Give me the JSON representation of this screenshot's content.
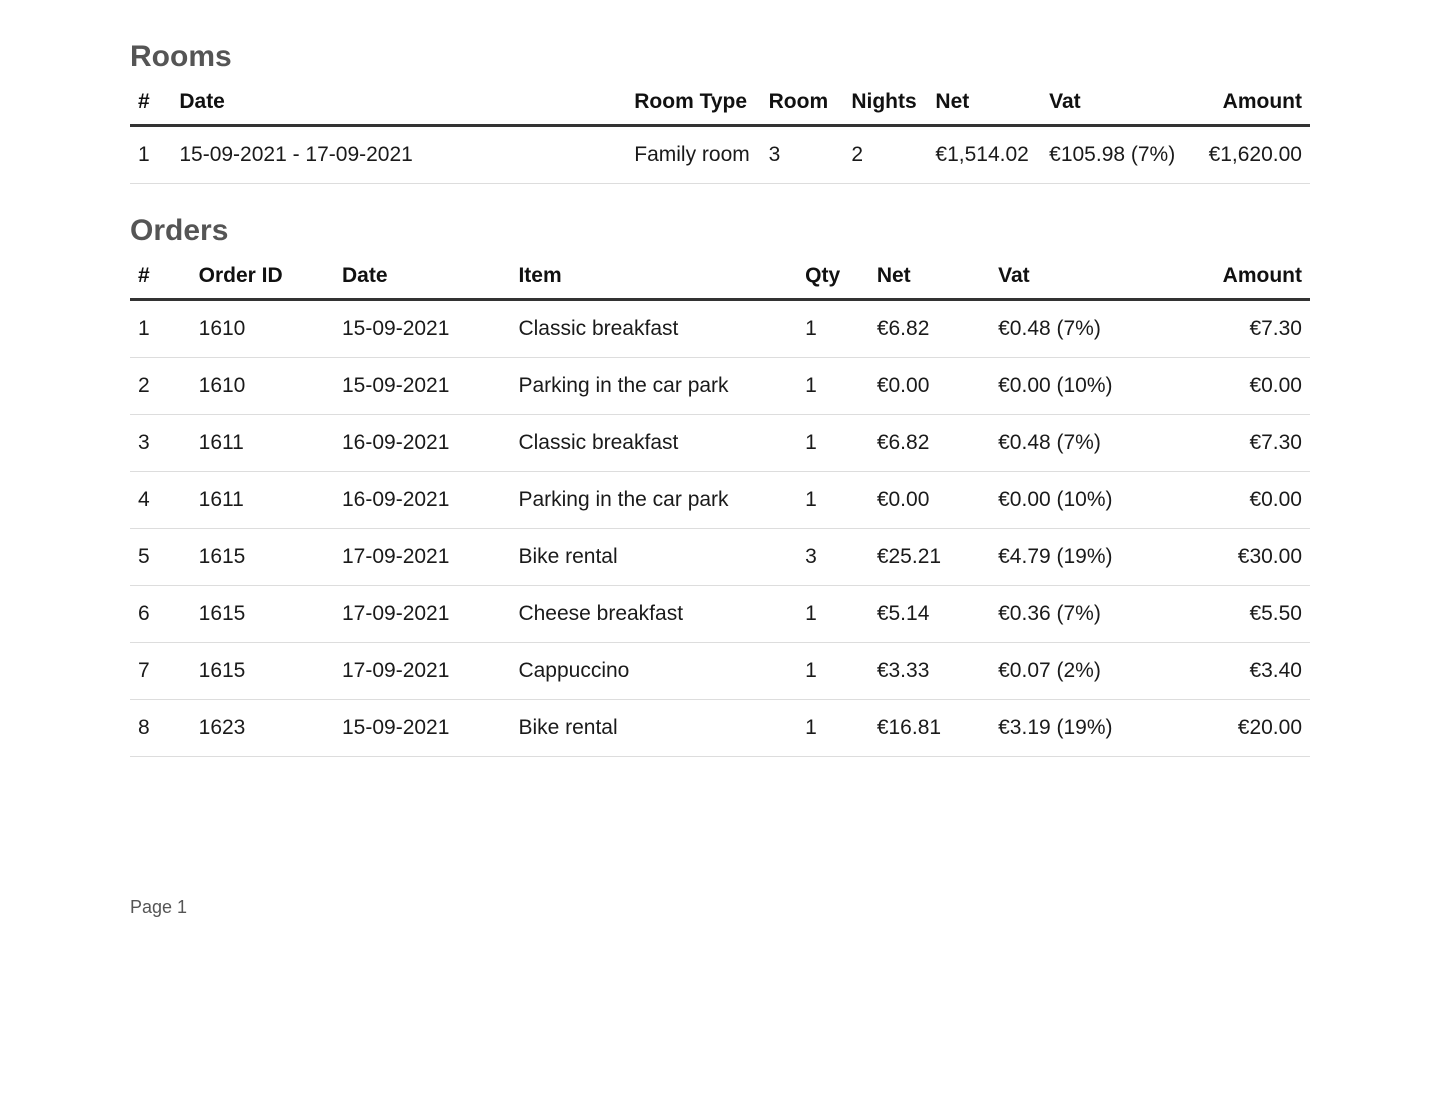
{
  "rooms": {
    "title": "Rooms",
    "columns": [
      "#",
      "Date",
      "Room Type",
      "Room",
      "Nights",
      "Net",
      "Vat",
      "Amount"
    ],
    "rows": [
      {
        "idx": "1",
        "date": "15-09-2021 - 17-09-2021",
        "room_type": "Family room",
        "room": "3",
        "nights": "2",
        "net": "€1,514.02",
        "vat": "€105.98 (7%)",
        "amount": "€1,620.00"
      }
    ]
  },
  "orders": {
    "title": "Orders",
    "columns": [
      "#",
      "Order ID",
      "Date",
      "Item",
      "Qty",
      "Net",
      "Vat",
      "Amount"
    ],
    "rows": [
      {
        "idx": "1",
        "order_id": "1610",
        "date": "15-09-2021",
        "item": "Classic breakfast",
        "qty": "1",
        "net": "€6.82",
        "vat": "€0.48 (7%)",
        "amount": "€7.30"
      },
      {
        "idx": "2",
        "order_id": "1610",
        "date": "15-09-2021",
        "item": "Parking in the car park",
        "qty": "1",
        "net": "€0.00",
        "vat": "€0.00 (10%)",
        "amount": "€0.00"
      },
      {
        "idx": "3",
        "order_id": "1611",
        "date": "16-09-2021",
        "item": "Classic breakfast",
        "qty": "1",
        "net": "€6.82",
        "vat": "€0.48 (7%)",
        "amount": "€7.30"
      },
      {
        "idx": "4",
        "order_id": "1611",
        "date": "16-09-2021",
        "item": "Parking in the car park",
        "qty": "1",
        "net": "€0.00",
        "vat": "€0.00 (10%)",
        "amount": "€0.00"
      },
      {
        "idx": "5",
        "order_id": "1615",
        "date": "17-09-2021",
        "item": "Bike rental",
        "qty": "3",
        "net": "€25.21",
        "vat": "€4.79 (19%)",
        "amount": "€30.00"
      },
      {
        "idx": "6",
        "order_id": "1615",
        "date": "17-09-2021",
        "item": "Cheese breakfast",
        "qty": "1",
        "net": "€5.14",
        "vat": "€0.36 (7%)",
        "amount": "€5.50"
      },
      {
        "idx": "7",
        "order_id": "1615",
        "date": "17-09-2021",
        "item": "Cappuccino",
        "qty": "1",
        "net": "€3.33",
        "vat": "€0.07 (2%)",
        "amount": "€3.40"
      },
      {
        "idx": "8",
        "order_id": "1623",
        "date": "15-09-2021",
        "item": "Bike rental",
        "qty": "1",
        "net": "€16.81",
        "vat": "€3.19 (19%)",
        "amount": "€20.00"
      }
    ]
  },
  "footer": {
    "page_label": "Page 1"
  }
}
